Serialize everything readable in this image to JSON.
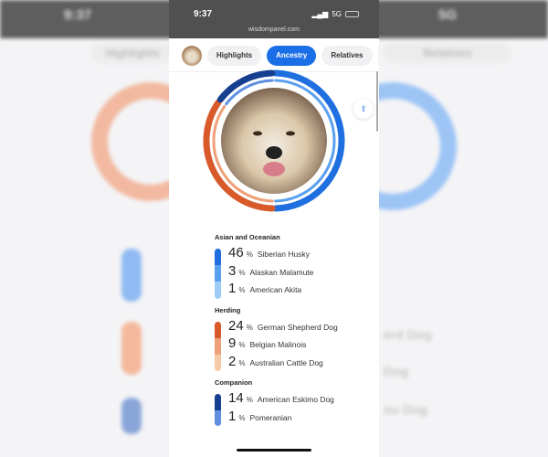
{
  "status": {
    "time": "9:37",
    "network": "5G",
    "url": "wisdompanel.com"
  },
  "tabs": [
    {
      "label": "Highlights",
      "active": false
    },
    {
      "label": "Ancestry",
      "active": true
    },
    {
      "label": "Relatives",
      "active": false
    }
  ],
  "icons": {
    "share": "share-icon",
    "avatar": "dog-avatar"
  },
  "colors": {
    "accent": "#1a6ee6",
    "asian": "#2f7ce8",
    "herding": "#e06a3c",
    "companion": "#1f4fa8"
  },
  "groups": [
    {
      "title": "Asian and Oceanian",
      "color": "#2f7ce8",
      "shades": [
        "#1f6fe0",
        "#5aa0f0",
        "#9fccf7"
      ],
      "breeds": [
        {
          "pct": "46",
          "name": "Siberian Husky"
        },
        {
          "pct": "3",
          "name": "Alaskan Malamute"
        },
        {
          "pct": "1",
          "name": "American Akita"
        }
      ]
    },
    {
      "title": "Herding",
      "color": "#e06a3c",
      "shades": [
        "#d85a2a",
        "#f0a078",
        "#f6c9a6"
      ],
      "breeds": [
        {
          "pct": "24",
          "name": "German Shepherd Dog"
        },
        {
          "pct": "9",
          "name": "Belgian Malinois"
        },
        {
          "pct": "2",
          "name": "Australian Cattle Dog"
        }
      ]
    },
    {
      "title": "Companion",
      "color": "#1f4fa8",
      "shades": [
        "#173f8f",
        "#5f8fe0"
      ],
      "breeds": [
        {
          "pct": "14",
          "name": "American Eskimo Dog"
        },
        {
          "pct": "1",
          "name": "Pomeranian"
        }
      ]
    }
  ],
  "pct_sign": "%"
}
